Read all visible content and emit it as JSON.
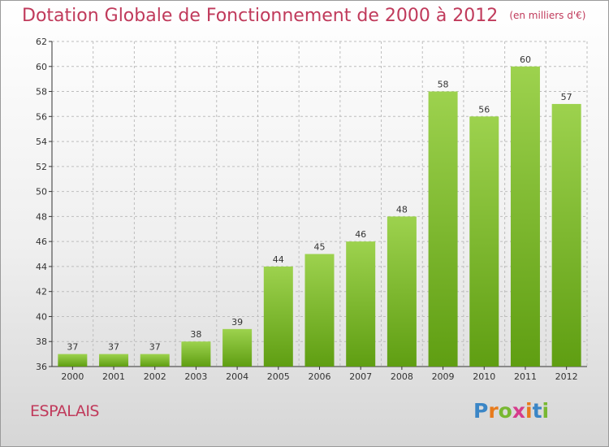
{
  "title": "Dotation Globale de Fonctionnement de 2000 à 2012",
  "subtitle": "(en milliers d'€)",
  "commune": "ESPALAIS",
  "logo": "Proxiti",
  "colors": {
    "bar_top": "#9dd24e",
    "bar_bottom": "#5f9e12",
    "title": "#c03a5b"
  },
  "chart_data": {
    "type": "bar",
    "title": "Dotation Globale de Fonctionnement de 2000 à 2012",
    "subtitle": "(en milliers d'€)",
    "categories": [
      "2000",
      "2001",
      "2002",
      "2003",
      "2004",
      "2005",
      "2006",
      "2007",
      "2008",
      "2009",
      "2010",
      "2011",
      "2012"
    ],
    "values": [
      37,
      37,
      37,
      38,
      39,
      44,
      45,
      46,
      48,
      58,
      56,
      60,
      57
    ],
    "ylim": [
      36,
      62
    ],
    "yticks": [
      36,
      38,
      40,
      42,
      44,
      46,
      48,
      50,
      52,
      54,
      56,
      58,
      60,
      62
    ],
    "grid": true,
    "xlabel": "",
    "ylabel": ""
  }
}
